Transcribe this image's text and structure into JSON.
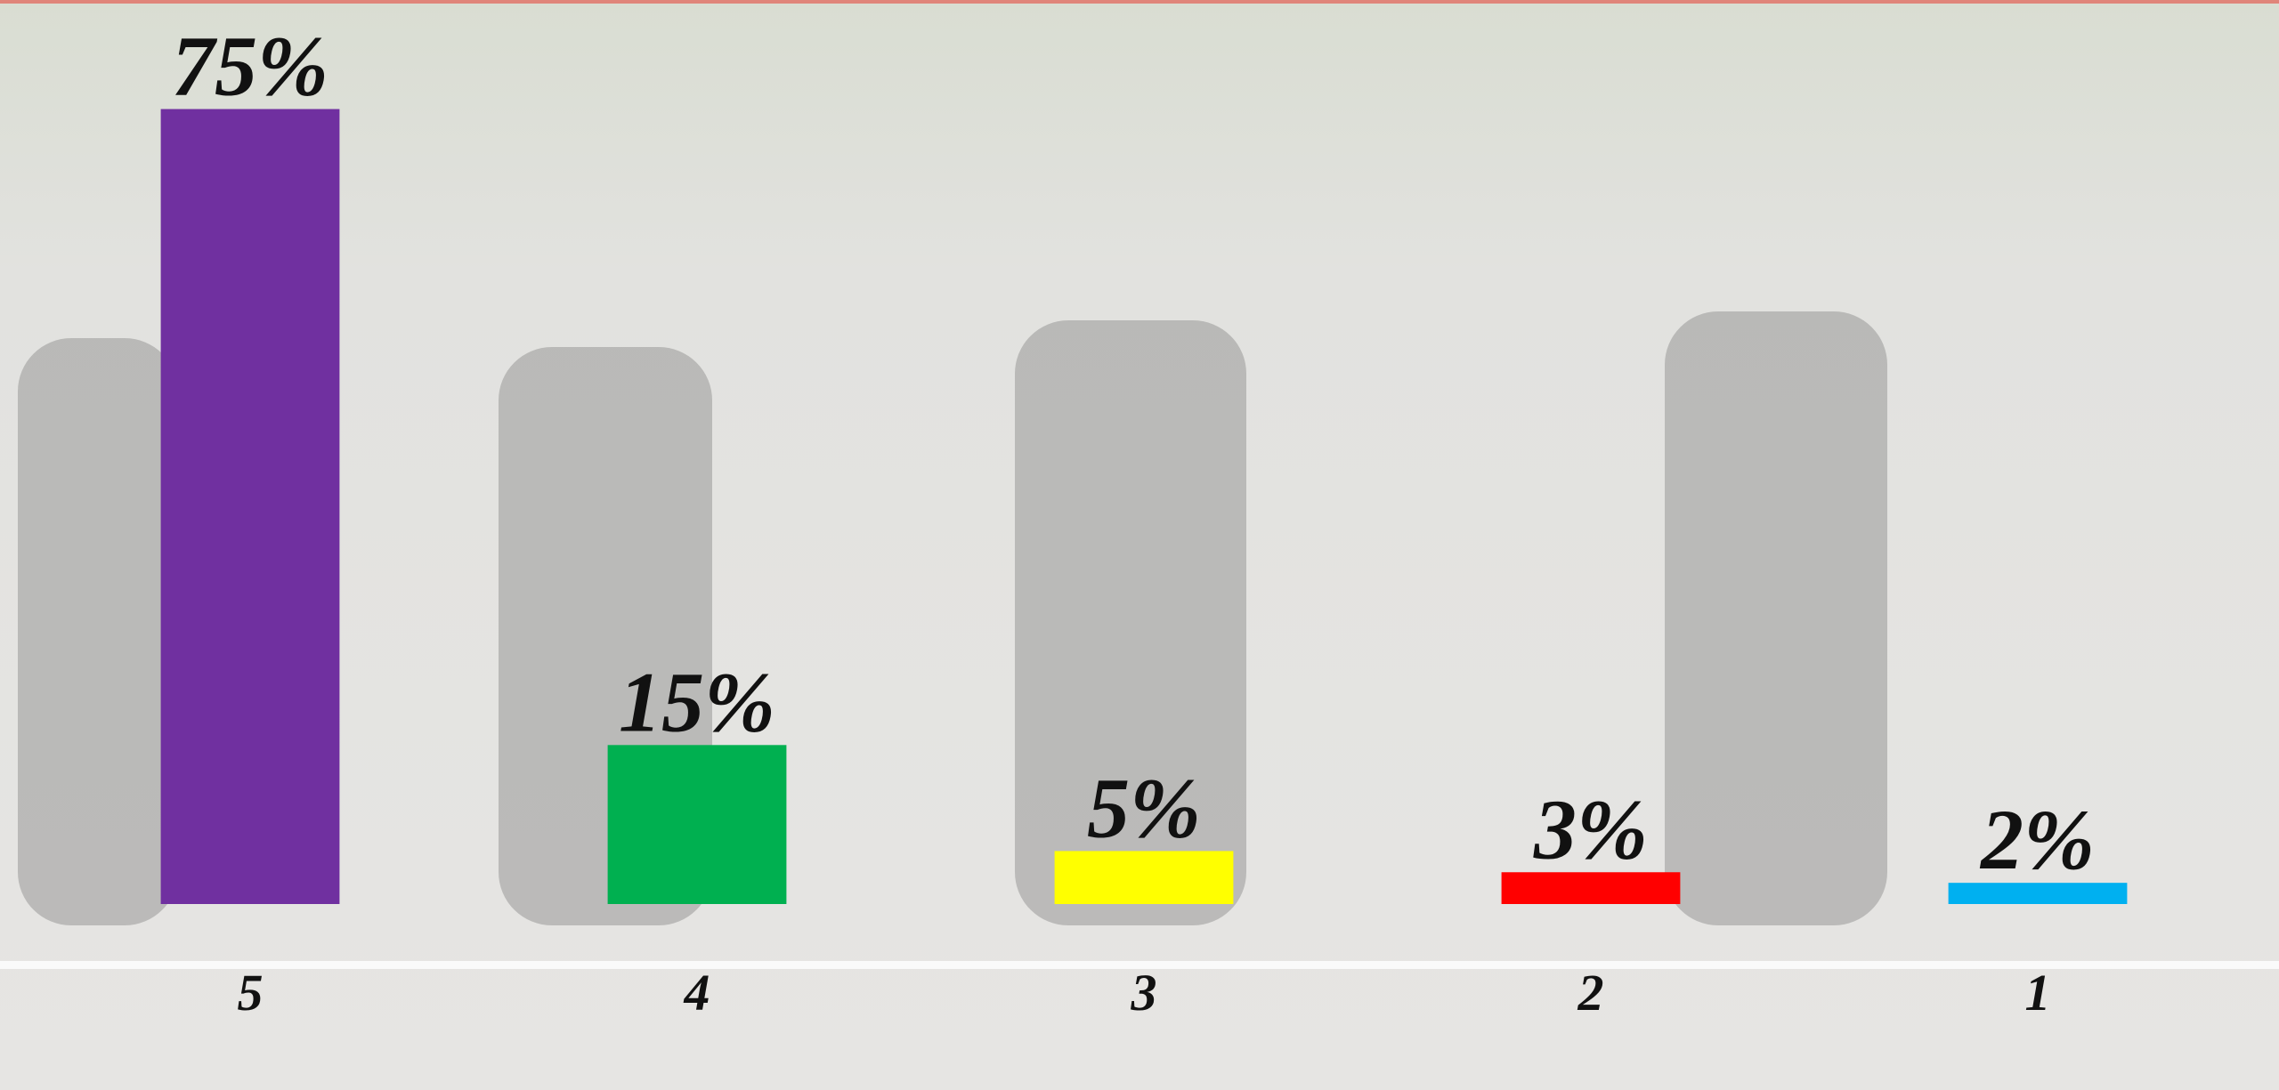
{
  "chart_data": {
    "type": "bar",
    "categories": [
      "5",
      "4",
      "3",
      "2",
      "1"
    ],
    "values": [
      75,
      15,
      5,
      3,
      2
    ],
    "value_labels": [
      "75%",
      "15%",
      "5%",
      "3%",
      "2%"
    ],
    "colors": [
      "#7030a0",
      "#00b050",
      "#ffff00",
      "#ff0000",
      "#00b0f0"
    ],
    "ylim": [
      0,
      80
    ]
  }
}
